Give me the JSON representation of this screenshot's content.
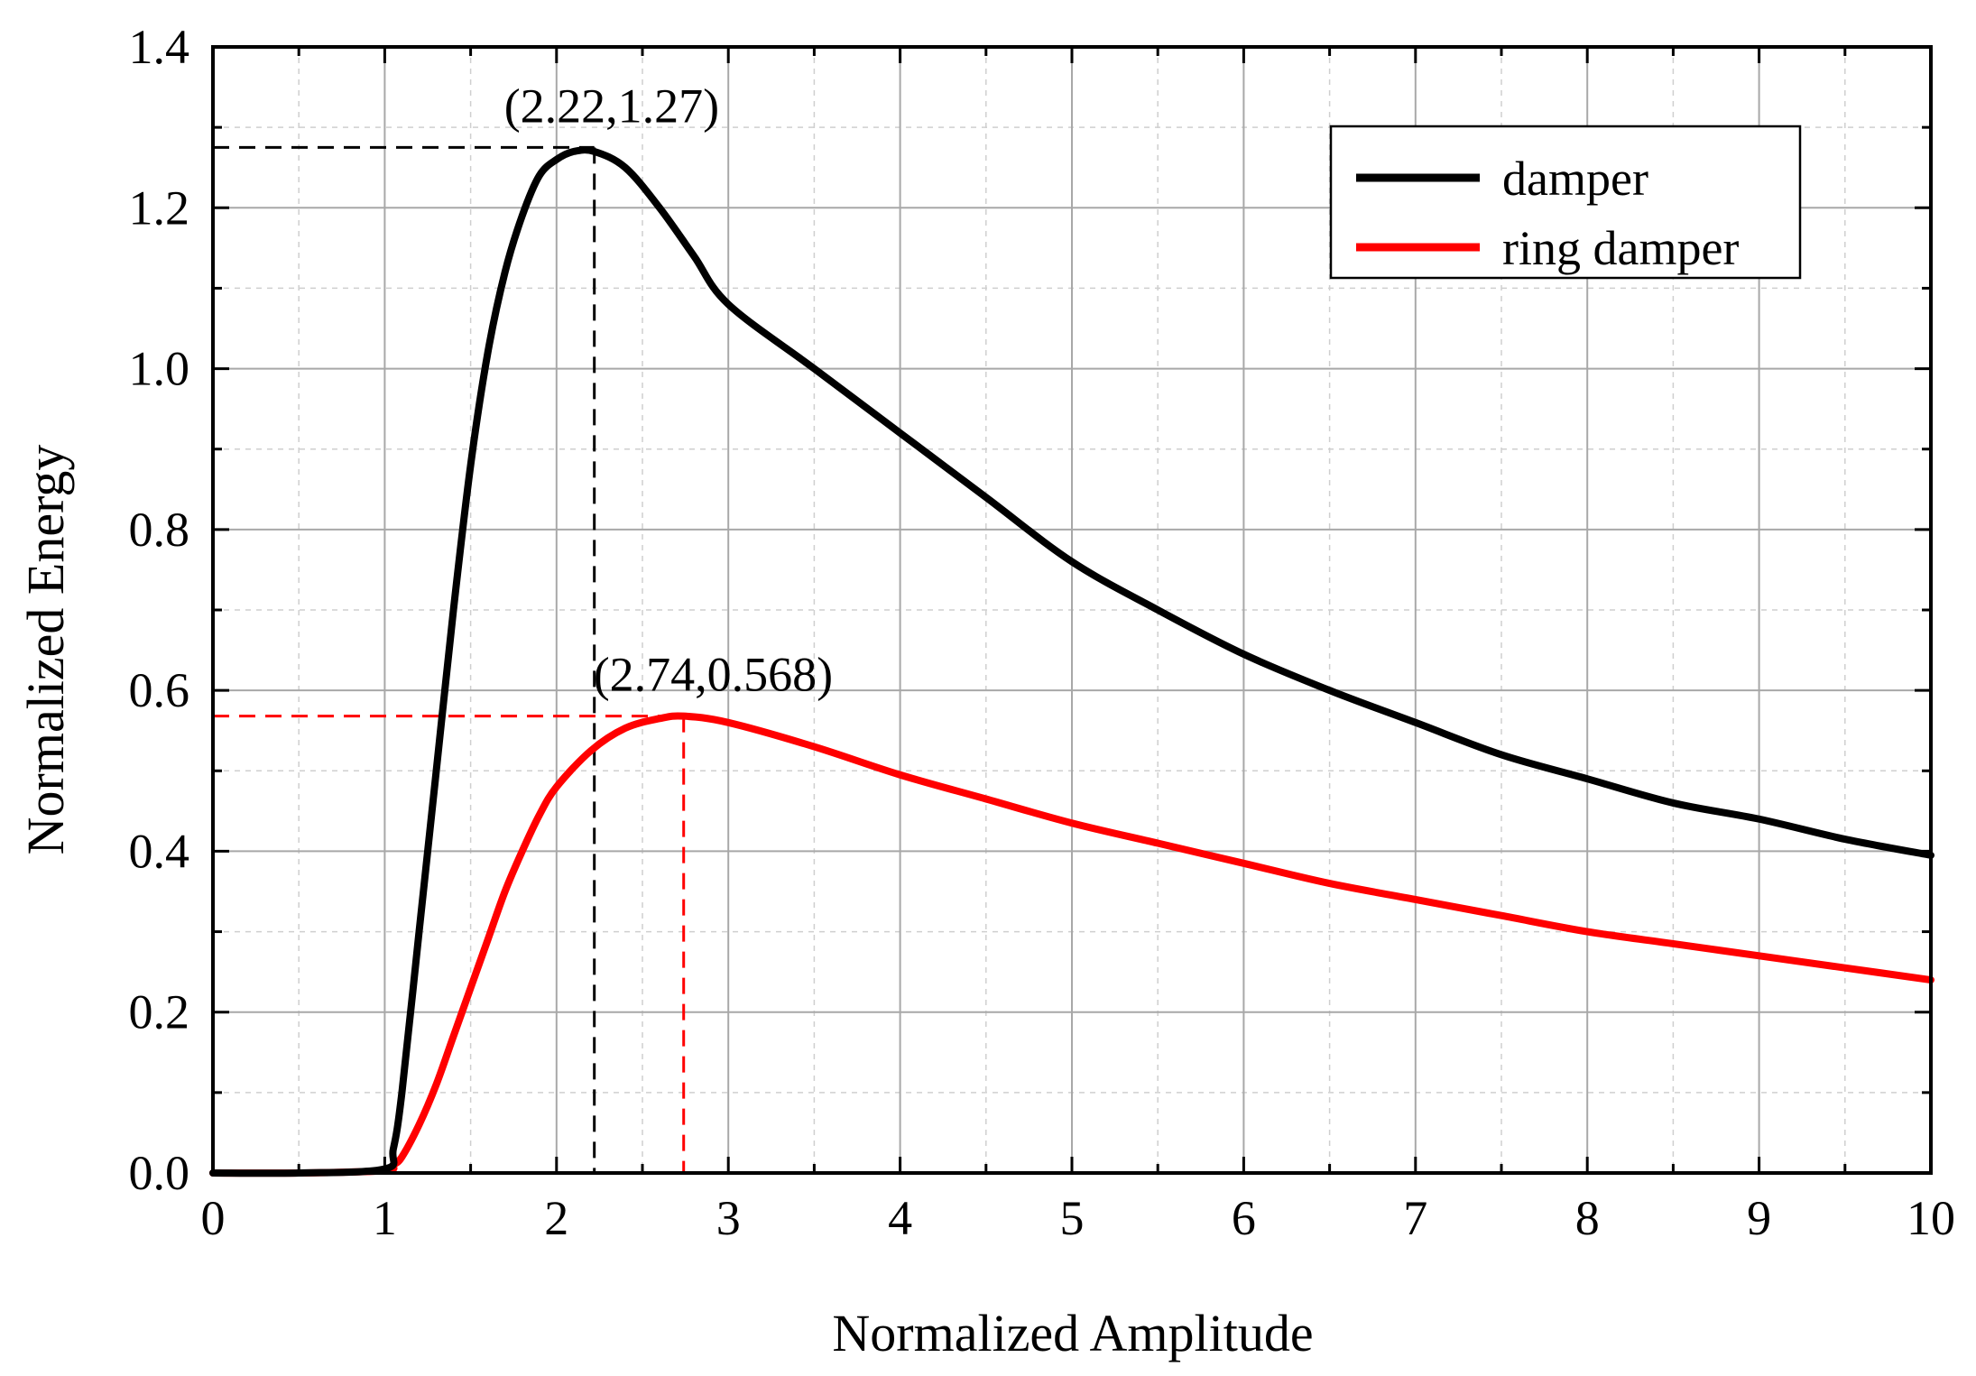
{
  "chart_data": {
    "type": "line",
    "title": "",
    "xlabel": "Normalized Amplitude",
    "ylabel": "Normalized Energy",
    "xlim": [
      0,
      10
    ],
    "ylim": [
      0,
      1.4
    ],
    "x_ticks": [
      0,
      1,
      2,
      3,
      4,
      5,
      6,
      7,
      8,
      9,
      10
    ],
    "x_tick_labels": [
      "0",
      "1",
      "2",
      "3",
      "4",
      "5",
      "6",
      "7",
      "8",
      "9",
      "10"
    ],
    "y_ticks": [
      0,
      0.2,
      0.4,
      0.6,
      0.8,
      1.0,
      1.2,
      1.4
    ],
    "y_tick_labels": [
      "0.0",
      "0.2",
      "0.4",
      "0.6",
      "0.8",
      "1.0",
      "1.2",
      "1.4"
    ],
    "grid": true,
    "legend_position": "top-right",
    "series": [
      {
        "name": "damper",
        "color": "#000000",
        "x": [
          0,
          0.5,
          1.0,
          1.05,
          1.1,
          1.2,
          1.3,
          1.4,
          1.5,
          1.6,
          1.7,
          1.8,
          1.9,
          2.0,
          2.1,
          2.22,
          2.4,
          2.6,
          2.8,
          3.0,
          3.5,
          4.0,
          4.5,
          5.0,
          5.5,
          6.0,
          6.5,
          7.0,
          7.5,
          8.0,
          8.5,
          9.0,
          9.5,
          10.0
        ],
        "y": [
          0,
          0,
          0.005,
          0.03,
          0.1,
          0.3,
          0.5,
          0.7,
          0.88,
          1.02,
          1.12,
          1.19,
          1.24,
          1.26,
          1.27,
          1.27,
          1.25,
          1.2,
          1.14,
          1.08,
          1.0,
          0.92,
          0.84,
          0.76,
          0.7,
          0.645,
          0.6,
          0.56,
          0.52,
          0.49,
          0.46,
          0.44,
          0.415,
          0.395
        ]
      },
      {
        "name": "ring damper",
        "color": "#ff0000",
        "x": [
          0,
          0.5,
          1.0,
          1.05,
          1.1,
          1.2,
          1.3,
          1.4,
          1.5,
          1.6,
          1.7,
          1.8,
          1.9,
          2.0,
          2.2,
          2.4,
          2.6,
          2.74,
          3.0,
          3.5,
          4.0,
          4.5,
          5.0,
          5.5,
          6.0,
          6.5,
          7.0,
          7.5,
          8.0,
          8.5,
          9.0,
          9.5,
          10.0
        ],
        "y": [
          0,
          0,
          0.003,
          0.01,
          0.02,
          0.06,
          0.11,
          0.17,
          0.23,
          0.29,
          0.35,
          0.4,
          0.445,
          0.48,
          0.525,
          0.553,
          0.565,
          0.568,
          0.56,
          0.53,
          0.495,
          0.465,
          0.435,
          0.41,
          0.385,
          0.36,
          0.34,
          0.32,
          0.3,
          0.285,
          0.27,
          0.255,
          0.24
        ]
      }
    ],
    "annotations": [
      {
        "label": "(2.22,1.27)",
        "x": 2.22,
        "y": 1.275,
        "color": "#000000"
      },
      {
        "label": "(2.74,0.568)",
        "x": 2.74,
        "y": 0.568,
        "color": "#ff0000"
      }
    ]
  }
}
